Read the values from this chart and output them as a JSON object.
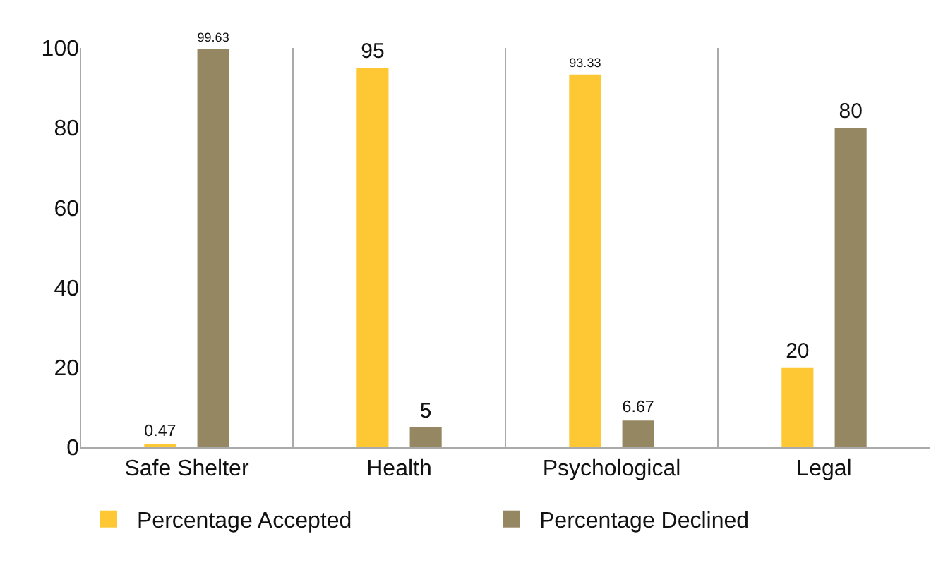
{
  "chart_data": {
    "type": "bar",
    "categories": [
      "Safe Shelter",
      "Health",
      "Psychological",
      "Legal"
    ],
    "series": [
      {
        "name": "Percentage Accepted",
        "color": "#fec835",
        "values": [
          0.47,
          95,
          93.33,
          20
        ]
      },
      {
        "name": "Percentage Declined",
        "color": "#948762",
        "values": [
          99.63,
          5,
          6.67,
          80
        ]
      }
    ],
    "ylim": [
      0,
      100
    ],
    "yticks": [
      0,
      20,
      40,
      60,
      80,
      100
    ],
    "grid": "x",
    "legend": "bottom left",
    "data_labels": true
  }
}
